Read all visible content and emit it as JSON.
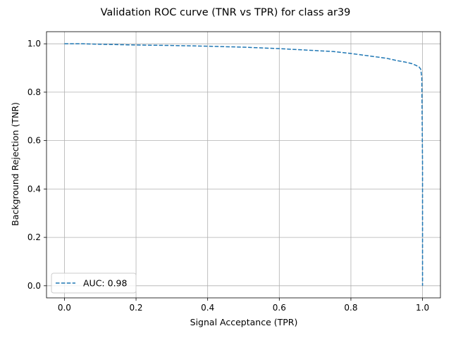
{
  "chart_data": {
    "type": "line",
    "title": "Validation ROC curve (TNR vs TPR) for class ar39",
    "xlabel": "Signal Acceptance (TPR)",
    "ylabel": "Background Rejection (TNR)",
    "xlim": [
      -0.05,
      1.05
    ],
    "ylim": [
      -0.05,
      1.05
    ],
    "xticks": [
      "0.0",
      "0.2",
      "0.4",
      "0.6",
      "0.8",
      "1.0"
    ],
    "yticks": [
      "0.0",
      "0.2",
      "0.4",
      "0.6",
      "0.8",
      "1.0"
    ],
    "grid": true,
    "legend_position": "lower-left",
    "series": [
      {
        "name": "AUC: 0.98",
        "color": "#1f77b4",
        "line_style": "dashed",
        "x": [
          0.0,
          0.05,
          0.1,
          0.2,
          0.3,
          0.4,
          0.5,
          0.6,
          0.7,
          0.75,
          0.8,
          0.85,
          0.9,
          0.93,
          0.95,
          0.97,
          0.98,
          0.99,
          0.995,
          0.998,
          1.0,
          1.0
        ],
        "y": [
          1.0,
          1.0,
          0.998,
          0.995,
          0.993,
          0.99,
          0.986,
          0.98,
          0.972,
          0.968,
          0.96,
          0.95,
          0.94,
          0.93,
          0.925,
          0.918,
          0.912,
          0.905,
          0.895,
          0.86,
          0.5,
          0.0
        ]
      }
    ]
  }
}
